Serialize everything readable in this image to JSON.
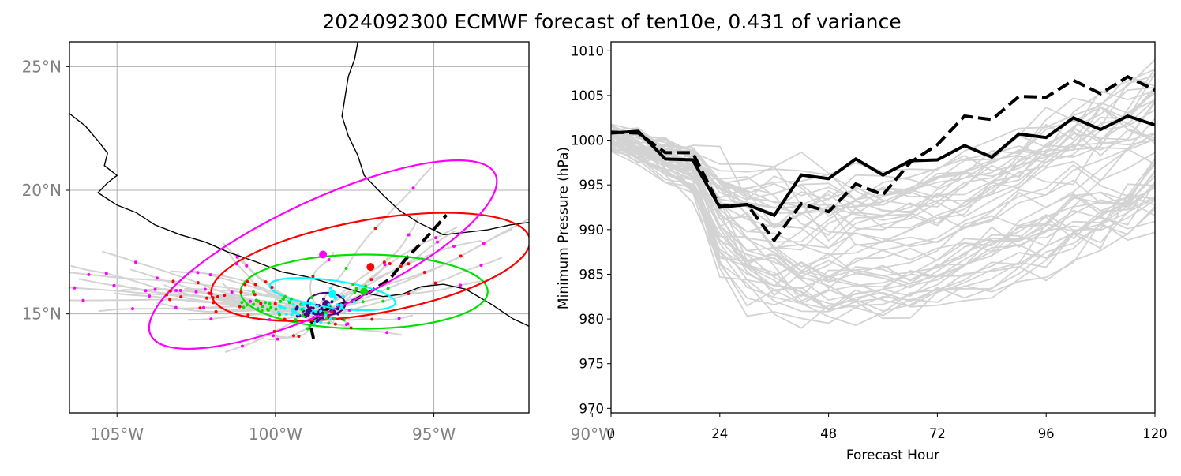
{
  "figure": {
    "title": "2024092300 ECMWF forecast of ten10e, 0.431 of variance"
  },
  "chart_data": [
    {
      "type": "map",
      "lon_range": [
        -106.5,
        -92
      ],
      "lat_range": [
        11,
        26
      ],
      "lon_ticks": [
        {
          "value": -105,
          "label": "105°W"
        },
        {
          "value": -100,
          "label": "100°W"
        },
        {
          "value": -95,
          "label": "95°W"
        },
        {
          "value": -90,
          "label": "90°W"
        }
      ],
      "lat_ticks": [
        {
          "value": 25,
          "label": "25°N"
        },
        {
          "value": 20,
          "label": "20°N"
        },
        {
          "value": 15,
          "label": "15°N"
        }
      ],
      "grid": true,
      "colors": {
        "coast": "#000000",
        "ensemble_track": "#d3d3d3",
        "mean_track": "#000000",
        "hour24": "#00e000",
        "hour48": "#ff0000",
        "hour72": "#ff00ff",
        "hour12": "#00ffff",
        "hour6": "#4b0082"
      },
      "coastline": [
        [
          -106.5,
          23.1
        ],
        [
          -106.0,
          22.6
        ],
        [
          -105.6,
          22.0
        ],
        [
          -105.3,
          21.5
        ],
        [
          -105.4,
          21.0
        ],
        [
          -105.0,
          20.6
        ],
        [
          -105.3,
          20.3
        ],
        [
          -105.6,
          19.9
        ],
        [
          -105.0,
          19.4
        ],
        [
          -104.4,
          19.1
        ],
        [
          -103.8,
          18.6
        ],
        [
          -103.0,
          18.2
        ],
        [
          -102.2,
          17.9
        ],
        [
          -101.5,
          17.5
        ],
        [
          -100.6,
          17.1
        ],
        [
          -99.8,
          16.7
        ],
        [
          -99.0,
          16.5
        ],
        [
          -98.2,
          16.2
        ],
        [
          -97.4,
          15.9
        ],
        [
          -96.6,
          15.7
        ],
        [
          -96.0,
          15.8
        ],
        [
          -95.4,
          16.1
        ],
        [
          -94.7,
          16.2
        ],
        [
          -94.0,
          16.0
        ],
        [
          -93.2,
          15.4
        ],
        [
          -92.5,
          14.8
        ],
        [
          -92.0,
          14.5
        ]
      ],
      "coastline_gulf": [
        [
          -97.4,
          26.0
        ],
        [
          -97.5,
          25.3
        ],
        [
          -97.7,
          24.6
        ],
        [
          -97.8,
          23.8
        ],
        [
          -97.9,
          23.0
        ],
        [
          -97.7,
          22.2
        ],
        [
          -97.4,
          21.4
        ],
        [
          -97.2,
          20.6
        ],
        [
          -96.6,
          19.8
        ],
        [
          -96.1,
          19.2
        ],
        [
          -95.5,
          18.7
        ],
        [
          -94.7,
          18.2
        ],
        [
          -94.0,
          18.3
        ],
        [
          -93.3,
          18.4
        ],
        [
          -92.6,
          18.6
        ],
        [
          -92.0,
          18.7
        ]
      ],
      "mean_track": [
        [
          -98.8,
          14.0
        ],
        [
          -98.9,
          14.6
        ],
        [
          -98.5,
          15.1
        ],
        [
          -98.2,
          15.3
        ],
        [
          -97.6,
          15.5
        ],
        [
          -97.0,
          15.9
        ],
        [
          -96.4,
          16.4
        ],
        [
          -95.9,
          17.2
        ],
        [
          -95.3,
          18.0
        ],
        [
          -94.6,
          19.0
        ]
      ],
      "ellipses": [
        {
          "name": "hour6",
          "center": [
            -98.4,
            15.4
          ],
          "semi_axes": [
            0.6,
            0.45
          ],
          "angle": 0
        },
        {
          "name": "hour12",
          "center": [
            -98.2,
            15.8
          ],
          "semi_axes": [
            2.0,
            0.55
          ],
          "angle": -8
        },
        {
          "name": "hour24",
          "center": [
            -97.2,
            15.9
          ],
          "semi_axes": [
            3.9,
            1.5
          ],
          "angle": 0
        },
        {
          "name": "hour48",
          "center": [
            -97.0,
            16.9
          ],
          "semi_axes": [
            5.1,
            1.9
          ],
          "angle": 10
        },
        {
          "name": "hour72",
          "center": [
            -98.5,
            17.4
          ],
          "semi_axes": [
            6.0,
            2.2
          ],
          "angle": 25
        }
      ]
    },
    {
      "type": "line",
      "xlabel": "Forecast Hour",
      "ylabel": "Minimum Pressure (hPa)",
      "xlim": [
        0,
        120
      ],
      "ylim": [
        969.5,
        1011
      ],
      "xticks": [
        0,
        24,
        48,
        72,
        96,
        120
      ],
      "yticks": [
        970,
        975,
        980,
        985,
        990,
        995,
        1000,
        1005,
        1010
      ],
      "x": [
        0,
        6,
        12,
        18,
        24,
        30,
        36,
        42,
        48,
        54,
        60,
        66,
        72,
        78,
        84,
        90,
        96,
        102,
        108,
        114,
        120
      ],
      "series": [
        {
          "style": "solid",
          "color": "#000000",
          "values": [
            1000.8,
            1001,
            997.9,
            997.8,
            992.5,
            992.8,
            991.6,
            996.1,
            995.7,
            997.9,
            996.1,
            997.7,
            997.8,
            999.4,
            998.1,
            1000.7,
            1000.3,
            1002.5,
            1001.2,
            1002.7,
            1001.7
          ]
        },
        {
          "style": "dashed",
          "color": "#000000",
          "values": [
            1000.9,
            1000.8,
            998.6,
            998.6,
            992.6,
            992.8,
            988.8,
            992.9,
            992.0,
            995.1,
            993.9,
            997.5,
            999.5,
            1002.7,
            1002.3,
            1004.9,
            1004.8,
            1006.7,
            1005.2,
            1007.1,
            1005.6
          ]
        }
      ]
    }
  ]
}
